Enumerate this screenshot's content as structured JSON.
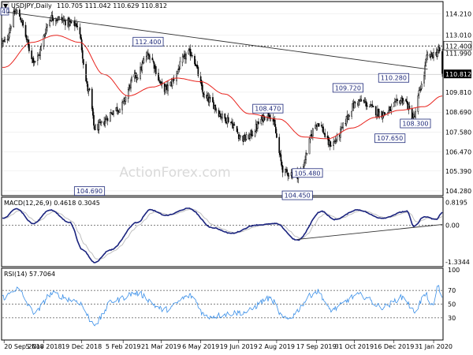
{
  "header": {
    "symbol": "USDJPY,Daily",
    "ohlc": "110.705 111.042 110.629 110.812",
    "collapse_glyph": "▼",
    "corner_label": "40"
  },
  "watermark": "ActionForex.com",
  "chart_data": {
    "type": "candlestick",
    "price_panel": {
      "ylim": [
        104.1,
        114.8
      ],
      "y_ticks": [
        "114.210",
        "113.010",
        "111.990",
        "110.812",
        "109.810",
        "108.690",
        "107.580",
        "106.470",
        "105.390",
        "104.280"
      ],
      "current_price": "110.812",
      "current_price_value": 110.812,
      "dashed_level": "112.400",
      "dashed_level_value": 112.4,
      "labels": [
        {
          "text": "104.690",
          "date": "2018-12-28",
          "value": 104.69
        },
        {
          "text": "112.400",
          "date": "2019-03-06",
          "value": 112.4
        },
        {
          "text": "104.450",
          "date": "2019-08-26",
          "value": 104.45
        },
        {
          "text": "108.470",
          "date": "2019-08-01",
          "value": 108.47
        },
        {
          "text": "105.480",
          "date": "2019-09-03",
          "value": 105.48
        },
        {
          "text": "109.720",
          "date": "2019-10-31",
          "value": 109.72
        },
        {
          "text": "107.650",
          "date": "2019-12-26",
          "value": 107.65
        },
        {
          "text": "108.300",
          "date": "2020-01-08",
          "value": 108.3
        },
        {
          "text": "110.280",
          "date": "2019-12-23",
          "value": 110.28
        }
      ],
      "trendline": {
        "start": {
          "date": "2018-09-24",
          "value": 114.3
        },
        "end": {
          "date": "2020-01-24",
          "value": 111.1
        }
      },
      "anchors": [
        {
          "date": "2018-09-20",
          "value": 112.6
        },
        {
          "date": "2018-10-04",
          "value": 114.3
        },
        {
          "date": "2018-10-26",
          "value": 111.6
        },
        {
          "date": "2018-11-14",
          "value": 114.0
        },
        {
          "date": "2018-12-13",
          "value": 113.6
        },
        {
          "date": "2018-12-28",
          "value": 109.8
        },
        {
          "date": "2019-01-03",
          "value": 107.8
        },
        {
          "date": "2019-01-31",
          "value": 108.9
        },
        {
          "date": "2019-02-20",
          "value": 110.7
        },
        {
          "date": "2019-03-06",
          "value": 111.9
        },
        {
          "date": "2019-03-25",
          "value": 110.0
        },
        {
          "date": "2019-04-24",
          "value": 112.0
        },
        {
          "date": "2019-05-13",
          "value": 109.4
        },
        {
          "date": "2019-06-05",
          "value": 108.3
        },
        {
          "date": "2019-06-25",
          "value": 107.2
        },
        {
          "date": "2019-07-25",
          "value": 108.6
        },
        {
          "date": "2019-08-12",
          "value": 105.3
        },
        {
          "date": "2019-08-26",
          "value": 105.2
        },
        {
          "date": "2019-09-19",
          "value": 108.1
        },
        {
          "date": "2019-10-03",
          "value": 106.9
        },
        {
          "date": "2019-11-06",
          "value": 109.3
        },
        {
          "date": "2019-12-03",
          "value": 108.6
        },
        {
          "date": "2019-12-27",
          "value": 109.4
        },
        {
          "date": "2020-01-08",
          "value": 108.4
        },
        {
          "date": "2020-01-17",
          "value": 110.2
        },
        {
          "date": "2020-01-24",
          "value": 111.8
        },
        {
          "date": "2020-02-07",
          "value": 112.1
        },
        {
          "date": "2020-02-10",
          "value": 110.8
        }
      ],
      "ma_anchors": [
        {
          "date": "2018-09-20",
          "value": 111.2
        },
        {
          "date": "2018-10-22",
          "value": 112.6
        },
        {
          "date": "2018-11-19",
          "value": 113.0
        },
        {
          "date": "2018-12-17",
          "value": 112.6
        },
        {
          "date": "2019-01-14",
          "value": 110.8
        },
        {
          "date": "2019-02-11",
          "value": 109.6
        },
        {
          "date": "2019-03-11",
          "value": 110.1
        },
        {
          "date": "2019-04-08",
          "value": 110.6
        },
        {
          "date": "2019-05-06",
          "value": 110.4
        },
        {
          "date": "2019-06-03",
          "value": 109.7
        },
        {
          "date": "2019-07-01",
          "value": 108.6
        },
        {
          "date": "2019-08-05",
          "value": 108.3
        },
        {
          "date": "2019-09-02",
          "value": 107.3
        },
        {
          "date": "2019-09-30",
          "value": 107.2
        },
        {
          "date": "2019-10-28",
          "value": 107.8
        },
        {
          "date": "2019-11-25",
          "value": 108.4
        },
        {
          "date": "2019-12-23",
          "value": 108.8
        },
        {
          "date": "2020-01-20",
          "value": 109.0
        },
        {
          "date": "2020-02-10",
          "value": 109.6
        }
      ]
    },
    "macd_panel": {
      "title": "MACD(12,26,9) 0.4618 0.3045",
      "ylim": [
        -1.45,
        0.95
      ],
      "y_ticks": [
        "0.8195",
        "0.00",
        "-1.3344"
      ],
      "trendline": {
        "start": {
          "date": "2019-08-26",
          "value": -0.52
        },
        "end": {
          "date": "2020-02-10",
          "value": 0.02
        }
      },
      "anchors": [
        {
          "date": "2018-09-20",
          "value": 0.25
        },
        {
          "date": "2018-10-04",
          "value": 0.6
        },
        {
          "date": "2018-10-24",
          "value": 0.05
        },
        {
          "date": "2018-11-12",
          "value": 0.55
        },
        {
          "date": "2018-12-05",
          "value": 0.1
        },
        {
          "date": "2018-12-20",
          "value": -0.9
        },
        {
          "date": "2019-01-03",
          "value": -1.35
        },
        {
          "date": "2019-01-21",
          "value": -0.9
        },
        {
          "date": "2019-02-22",
          "value": 0.1
        },
        {
          "date": "2019-03-08",
          "value": 0.55
        },
        {
          "date": "2019-03-27",
          "value": 0.35
        },
        {
          "date": "2019-04-22",
          "value": 0.6
        },
        {
          "date": "2019-05-20",
          "value": -0.1
        },
        {
          "date": "2019-06-10",
          "value": -0.3
        },
        {
          "date": "2019-07-10",
          "value": 0.0
        },
        {
          "date": "2019-08-01",
          "value": 0.05
        },
        {
          "date": "2019-08-26",
          "value": -0.55
        },
        {
          "date": "2019-09-23",
          "value": 0.5
        },
        {
          "date": "2019-10-08",
          "value": 0.2
        },
        {
          "date": "2019-11-04",
          "value": 0.55
        },
        {
          "date": "2019-12-02",
          "value": 0.25
        },
        {
          "date": "2019-12-31",
          "value": 0.5
        },
        {
          "date": "2020-01-08",
          "value": -0.05
        },
        {
          "date": "2020-01-20",
          "value": 0.3
        },
        {
          "date": "2020-02-03",
          "value": 0.2
        },
        {
          "date": "2020-02-10",
          "value": 0.46
        }
      ]
    },
    "rsi_panel": {
      "title": "RSI(14) 57.7064",
      "ylim": [
        0,
        100
      ],
      "y_ticks": [
        "100",
        "70",
        "50",
        "30",
        "0"
      ],
      "levels": [
        70,
        50,
        30
      ],
      "anchors": [
        {
          "date": "2018-09-20",
          "value": 60
        },
        {
          "date": "2018-10-04",
          "value": 72
        },
        {
          "date": "2018-10-26",
          "value": 38
        },
        {
          "date": "2018-11-14",
          "value": 65
        },
        {
          "date": "2018-12-13",
          "value": 55
        },
        {
          "date": "2019-01-03",
          "value": 22
        },
        {
          "date": "2019-01-25",
          "value": 55
        },
        {
          "date": "2019-02-20",
          "value": 66
        },
        {
          "date": "2019-03-25",
          "value": 42
        },
        {
          "date": "2019-04-24",
          "value": 62
        },
        {
          "date": "2019-05-13",
          "value": 32
        },
        {
          "date": "2019-06-25",
          "value": 38
        },
        {
          "date": "2019-07-25",
          "value": 58
        },
        {
          "date": "2019-08-12",
          "value": 28
        },
        {
          "date": "2019-09-19",
          "value": 68
        },
        {
          "date": "2019-10-03",
          "value": 42
        },
        {
          "date": "2019-11-06",
          "value": 63
        },
        {
          "date": "2019-12-03",
          "value": 46
        },
        {
          "date": "2019-12-27",
          "value": 60
        },
        {
          "date": "2020-01-08",
          "value": 40
        },
        {
          "date": "2020-01-22",
          "value": 63
        },
        {
          "date": "2020-01-31",
          "value": 45
        },
        {
          "date": "2020-02-05",
          "value": 78
        },
        {
          "date": "2020-02-10",
          "value": 57.7
        }
      ]
    },
    "x_axis": {
      "range": [
        "2018-09-18",
        "2020-02-10"
      ],
      "ticks": [
        {
          "label": "20 Sep 2018",
          "date": "2018-09-20"
        },
        {
          "label": "5 Nov 2018",
          "date": "2018-11-05"
        },
        {
          "label": "19 Dec 2018",
          "date": "2018-12-19"
        },
        {
          "label": "5 Feb 2019",
          "date": "2019-02-05"
        },
        {
          "label": "21 Mar 2019",
          "date": "2019-03-21"
        },
        {
          "label": "6 May 2019",
          "date": "2019-05-06"
        },
        {
          "label": "19 Jun 2019",
          "date": "2019-06-19"
        },
        {
          "label": "2 Aug 2019",
          "date": "2019-08-02"
        },
        {
          "label": "17 Sep 2019",
          "date": "2019-09-17"
        },
        {
          "label": "31 Oct 2019",
          "date": "2019-10-31"
        },
        {
          "label": "16 Dec 2019",
          "date": "2019-12-16"
        },
        {
          "label": "31 Jan 2020",
          "date": "2020-01-31"
        }
      ]
    },
    "colors": {
      "bull": "#ffffff",
      "bear": "#000000",
      "candle_outline": "#000000",
      "moving_average": "#e8231d",
      "trendline": "#333333",
      "macd_line": "#1a237e",
      "signal_line": "#c0c0c0",
      "rsi_line": "#3a8fe8",
      "label_border": "#1f2a7a",
      "current_price_bg": "#000000",
      "grid": "#e6e6e6"
    }
  }
}
